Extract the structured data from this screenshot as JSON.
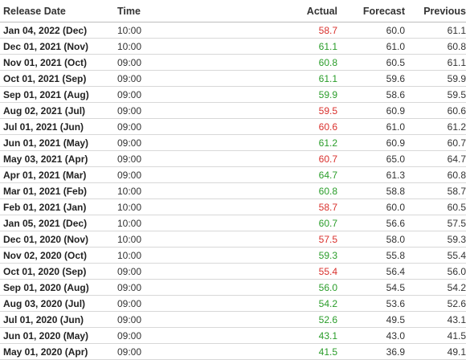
{
  "headers": {
    "release_date": "Release Date",
    "time": "Time",
    "actual": "Actual",
    "forecast": "Forecast",
    "previous": "Previous"
  },
  "colors": {
    "actual_above": "#2a9d2a",
    "actual_below": "#d9302c"
  },
  "rows": [
    {
      "date": "Jan 04, 2022 (Dec)",
      "time": "10:00",
      "actual": "58.7",
      "forecast": "60.0",
      "previous": "61.1",
      "trend": "down"
    },
    {
      "date": "Dec 01, 2021 (Nov)",
      "time": "10:00",
      "actual": "61.1",
      "forecast": "61.0",
      "previous": "60.8",
      "trend": "up"
    },
    {
      "date": "Nov 01, 2021 (Oct)",
      "time": "09:00",
      "actual": "60.8",
      "forecast": "60.5",
      "previous": "61.1",
      "trend": "up"
    },
    {
      "date": "Oct 01, 2021 (Sep)",
      "time": "09:00",
      "actual": "61.1",
      "forecast": "59.6",
      "previous": "59.9",
      "trend": "up"
    },
    {
      "date": "Sep 01, 2021 (Aug)",
      "time": "09:00",
      "actual": "59.9",
      "forecast": "58.6",
      "previous": "59.5",
      "trend": "up"
    },
    {
      "date": "Aug 02, 2021 (Jul)",
      "time": "09:00",
      "actual": "59.5",
      "forecast": "60.9",
      "previous": "60.6",
      "trend": "down"
    },
    {
      "date": "Jul 01, 2021 (Jun)",
      "time": "09:00",
      "actual": "60.6",
      "forecast": "61.0",
      "previous": "61.2",
      "trend": "down"
    },
    {
      "date": "Jun 01, 2021 (May)",
      "time": "09:00",
      "actual": "61.2",
      "forecast": "60.9",
      "previous": "60.7",
      "trend": "up"
    },
    {
      "date": "May 03, 2021 (Apr)",
      "time": "09:00",
      "actual": "60.7",
      "forecast": "65.0",
      "previous": "64.7",
      "trend": "down"
    },
    {
      "date": "Apr 01, 2021 (Mar)",
      "time": "09:00",
      "actual": "64.7",
      "forecast": "61.3",
      "previous": "60.8",
      "trend": "up"
    },
    {
      "date": "Mar 01, 2021 (Feb)",
      "time": "10:00",
      "actual": "60.8",
      "forecast": "58.8",
      "previous": "58.7",
      "trend": "up"
    },
    {
      "date": "Feb 01, 2021 (Jan)",
      "time": "10:00",
      "actual": "58.7",
      "forecast": "60.0",
      "previous": "60.5",
      "trend": "down"
    },
    {
      "date": "Jan 05, 2021 (Dec)",
      "time": "10:00",
      "actual": "60.7",
      "forecast": "56.6",
      "previous": "57.5",
      "trend": "up"
    },
    {
      "date": "Dec 01, 2020 (Nov)",
      "time": "10:00",
      "actual": "57.5",
      "forecast": "58.0",
      "previous": "59.3",
      "trend": "down"
    },
    {
      "date": "Nov 02, 2020 (Oct)",
      "time": "10:00",
      "actual": "59.3",
      "forecast": "55.8",
      "previous": "55.4",
      "trend": "up"
    },
    {
      "date": "Oct 01, 2020 (Sep)",
      "time": "09:00",
      "actual": "55.4",
      "forecast": "56.4",
      "previous": "56.0",
      "trend": "down"
    },
    {
      "date": "Sep 01, 2020 (Aug)",
      "time": "09:00",
      "actual": "56.0",
      "forecast": "54.5",
      "previous": "54.2",
      "trend": "up"
    },
    {
      "date": "Aug 03, 2020 (Jul)",
      "time": "09:00",
      "actual": "54.2",
      "forecast": "53.6",
      "previous": "52.6",
      "trend": "up"
    },
    {
      "date": "Jul 01, 2020 (Jun)",
      "time": "09:00",
      "actual": "52.6",
      "forecast": "49.5",
      "previous": "43.1",
      "trend": "up"
    },
    {
      "date": "Jun 01, 2020 (May)",
      "time": "09:00",
      "actual": "43.1",
      "forecast": "43.0",
      "previous": "41.5",
      "trend": "up"
    },
    {
      "date": "May 01, 2020 (Apr)",
      "time": "09:00",
      "actual": "41.5",
      "forecast": "36.9",
      "previous": "49.1",
      "trend": "up"
    }
  ]
}
